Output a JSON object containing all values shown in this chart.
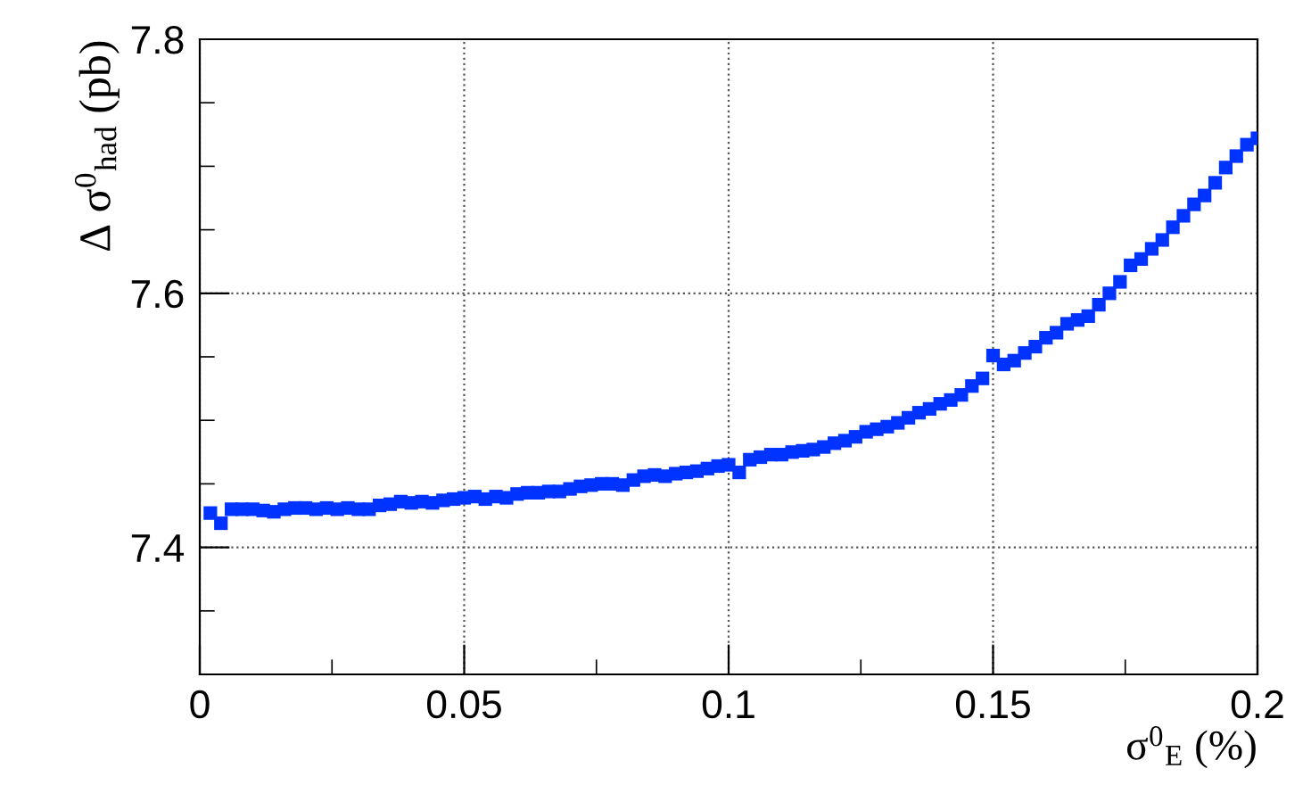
{
  "chart_data": {
    "type": "scatter",
    "xlabel": "σ$^{0}$$_{E}$ (%)",
    "ylabel": "Δ σ$^{0}$$_{had}$ (pb)",
    "x": [
      0.002,
      0.004,
      0.006,
      0.008,
      0.01,
      0.012,
      0.014,
      0.016,
      0.018,
      0.02,
      0.022,
      0.024,
      0.026,
      0.028,
      0.03,
      0.032,
      0.034,
      0.036,
      0.038,
      0.04,
      0.042,
      0.044,
      0.046,
      0.048,
      0.05,
      0.052,
      0.054,
      0.056,
      0.058,
      0.06,
      0.062,
      0.064,
      0.066,
      0.068,
      0.07,
      0.072,
      0.074,
      0.076,
      0.078,
      0.08,
      0.082,
      0.084,
      0.086,
      0.088,
      0.09,
      0.092,
      0.094,
      0.096,
      0.098,
      0.1,
      0.102,
      0.104,
      0.106,
      0.108,
      0.11,
      0.112,
      0.114,
      0.116,
      0.118,
      0.12,
      0.122,
      0.124,
      0.126,
      0.128,
      0.13,
      0.132,
      0.134,
      0.136,
      0.138,
      0.14,
      0.142,
      0.144,
      0.146,
      0.148,
      0.15,
      0.152,
      0.154,
      0.156,
      0.158,
      0.16,
      0.162,
      0.164,
      0.166,
      0.168,
      0.17,
      0.172,
      0.174,
      0.176,
      0.178,
      0.18,
      0.182,
      0.184,
      0.186,
      0.188,
      0.19,
      0.192,
      0.194,
      0.196,
      0.198,
      0.2
    ],
    "series": [
      {
        "color": "#0033ff",
        "values": [
          7.427,
          7.419,
          7.43,
          7.43,
          7.43,
          7.429,
          7.428,
          7.43,
          7.431,
          7.431,
          7.43,
          7.431,
          7.43,
          7.431,
          7.43,
          7.43,
          7.433,
          7.434,
          7.436,
          7.435,
          7.436,
          7.435,
          7.437,
          7.438,
          7.439,
          7.44,
          7.438,
          7.44,
          7.439,
          7.442,
          7.443,
          7.443,
          7.444,
          7.444,
          7.446,
          7.448,
          7.449,
          7.45,
          7.45,
          7.449,
          7.453,
          7.456,
          7.457,
          7.456,
          7.458,
          7.459,
          7.46,
          7.462,
          7.464,
          7.465,
          7.459,
          7.469,
          7.471,
          7.473,
          7.473,
          7.475,
          7.476,
          7.477,
          7.479,
          7.482,
          7.484,
          7.487,
          7.491,
          7.493,
          7.495,
          7.498,
          7.502,
          7.506,
          7.509,
          7.513,
          7.516,
          7.52,
          7.527,
          7.533,
          7.551,
          7.544,
          7.547,
          7.553,
          7.558,
          7.565,
          7.569,
          7.576,
          7.579,
          7.582,
          7.591,
          7.6,
          7.609,
          7.622,
          7.627,
          7.635,
          7.642,
          7.652,
          7.661,
          7.67,
          7.677,
          7.687,
          7.699,
          7.708,
          7.717,
          7.722
        ]
      }
    ],
    "xlim": [
      0,
      0.2
    ],
    "ylim": [
      7.3,
      7.8
    ],
    "xticks": [
      0,
      0.05,
      0.1,
      0.15,
      0.2
    ],
    "yticks": [
      7.4,
      7.6,
      7.8
    ],
    "grid": true,
    "marker": "square"
  }
}
